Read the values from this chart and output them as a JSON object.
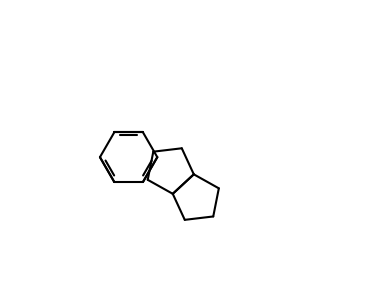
{
  "bg": "#ffffff",
  "lc": "#000000",
  "lw": 1.5,
  "fs": 8.5,
  "fig_w": 3.8,
  "fig_h": 3.04,
  "xlim": [
    -2.6,
    2.9
  ],
  "ylim": [
    -2.4,
    2.9
  ]
}
